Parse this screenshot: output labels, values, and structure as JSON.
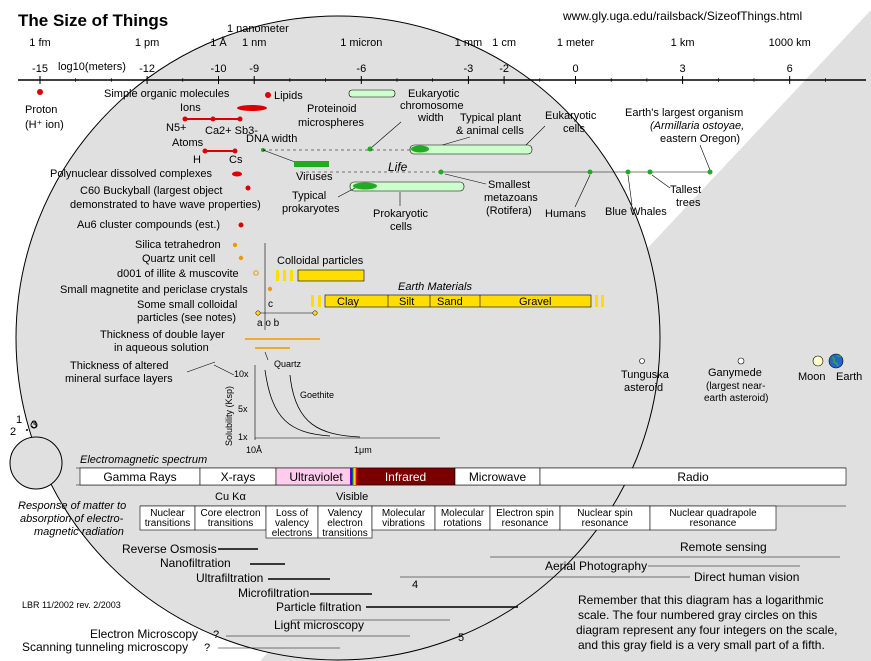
{
  "header": {
    "title": "The Size of Things",
    "url": "www.gly.uga.edu/railsback/SizeofThings.html"
  },
  "scale": {
    "axis_label": "log10(meters)",
    "ticks": [
      {
        "value": -15,
        "label": "-15",
        "unit": "1 fm"
      },
      {
        "value": -12,
        "label": "-12",
        "unit": "1 pm"
      },
      {
        "value": -10,
        "label": "-10",
        "unit": "1 Å"
      },
      {
        "value": -9,
        "label": "-9",
        "unit": "1 nm"
      },
      {
        "value": -6,
        "label": "-6",
        "unit": "1 micron"
      },
      {
        "value": -3,
        "label": "-3",
        "unit": "1 mm"
      },
      {
        "value": -2,
        "label": "-2",
        "unit": "1 cm"
      },
      {
        "value": 0,
        "label": "0",
        "unit": "1 meter"
      },
      {
        "value": 3,
        "label": "3",
        "unit": "1 km"
      },
      {
        "value": 6,
        "label": "6",
        "unit": "1000 km"
      }
    ],
    "nanometer_label": "1 nanometer"
  },
  "labels": {
    "proton": "Proton",
    "proton_sub": "(H⁺ ion)",
    "simple_organic": "Simple organic molecules",
    "ions": "Ions",
    "n5": "N5+",
    "ca_sb": "Ca2+ Sb3-",
    "atoms": "Atoms",
    "h": "H",
    "cs": "Cs",
    "lipids": "Lipids",
    "proteinoid": "Proteinoid",
    "microspheres": "microspheres",
    "euk_chrom1": "Eukaryotic",
    "euk_chrom2": "chromosome",
    "euk_chrom3": "width",
    "plant1": "Typical plant",
    "plant2": "& animal cells",
    "euk_cells1": "Eukaryotic",
    "euk_cells2": "cells",
    "largest1": "Earth's largest organism",
    "largest2": "(Armillaria ostoyae,",
    "largest3": "eastern Oregon)",
    "dna": "DNA width",
    "life": "Life",
    "viruses": "Viruses",
    "polynuclear": "Polynuclear dissolved complexes",
    "c60_1": "C60 Buckyball (largest object",
    "c60_2": "demonstrated to have wave properties)",
    "au6": "Au6 cluster compounds (est.)",
    "typ_prok1": "Typical",
    "typ_prok2": "prokaryotes",
    "prok1": "Prokaryotic",
    "prok2": "cells",
    "smallest1": "Smallest",
    "smallest2": "metazoans",
    "smallest3": "(Rotifera)",
    "humans": "Humans",
    "whales": "Blue Whales",
    "trees1": "Tallest",
    "trees2": "trees",
    "silica": "Silica tetrahedron",
    "quartz": "Quartz unit cell",
    "d001_1": "d001 of illite & muscovite",
    "colloidal": "Colloidal particles",
    "small_mag": "Small magnetite and periclase crystals",
    "earth_mat": "Earth Materials",
    "clay": "Clay",
    "silt": "Silt",
    "sand": "Sand",
    "gravel": "Gravel",
    "some_coll1": "Some small colloidal",
    "some_coll2": "particles (see notes)",
    "c": "c",
    "a_b": "a   o   b",
    "double1": "Thickness of double layer",
    "double2": "in aqueous solution",
    "altered1": "Thickness of altered",
    "altered2": "mineral surface layers",
    "quartz_small": "Quartz",
    "goethite": "Goethite",
    "ten_x": "10x",
    "five_x": "5x",
    "one_x": "1x",
    "solubility": "Solubility (Ksp)",
    "ten_a": "10Å",
    "one_um": "1μm",
    "tunguska1": "Tunguska",
    "tunguska2": "asteroid",
    "ganymede1": "Ganymede",
    "ganymede2": "(largest near-",
    "ganymede3": "earth asteroid)",
    "moon": "Moon",
    "earth": "Earth",
    "circ1": "1",
    "circ2": "2",
    "circ3": "3",
    "circ4": "4",
    "circ5": "5"
  },
  "em_spectrum": {
    "title": "Electromagnetic spectrum",
    "bands": [
      {
        "label": "Gamma Rays",
        "color": "#ffffff"
      },
      {
        "label": "X-rays",
        "color": "#ffffff"
      },
      {
        "label": "Ultraviolet",
        "color": "#ffccee"
      },
      {
        "label": "Infrared",
        "color": "#7a0000"
      },
      {
        "label": "Microwave",
        "color": "#ffffff"
      },
      {
        "label": "Radio",
        "color": "#ffffff"
      }
    ],
    "cu_label": "Cu Kα",
    "visible_label": "Visible"
  },
  "response": {
    "title1": "Response of matter to",
    "title2": "absorption of electro-",
    "title3": "magnetic radiation",
    "cells": [
      {
        "l1": "Nuclear",
        "l2": "transitions",
        "l3": ""
      },
      {
        "l1": "Core electron",
        "l2": "transitions",
        "l3": ""
      },
      {
        "l1": "Loss of",
        "l2": "valency",
        "l3": "electrons"
      },
      {
        "l1": "Valency",
        "l2": "electron",
        "l3": "transitions"
      },
      {
        "l1": "Molecular",
        "l2": "vibrations",
        "l3": ""
      },
      {
        "l1": "Molecular",
        "l2": "rotations",
        "l3": ""
      },
      {
        "l1": "Electron spin",
        "l2": "resonance",
        "l3": ""
      },
      {
        "l1": "Nuclear spin",
        "l2": "resonance",
        "l3": ""
      },
      {
        "l1": "Nuclear quadrapole",
        "l2": "resonance",
        "l3": ""
      }
    ]
  },
  "techniques": [
    {
      "label": "Remote sensing"
    },
    {
      "label": "Reverse Osmosis"
    },
    {
      "label": "Aerial Photography"
    },
    {
      "label": "Nanofiltration"
    },
    {
      "label": "Direct human vision"
    },
    {
      "label": "Ultrafiltration"
    },
    {
      "label": "Microfiltration"
    },
    {
      "label": "Particle filtration"
    },
    {
      "label": "Light microscopy"
    },
    {
      "label": "Electron Microscopy"
    },
    {
      "label": "Scanning tunneling microscopy"
    },
    {
      "label": "?"
    },
    {
      "label": "?"
    }
  ],
  "footer": {
    "credit": "LBR 11/2002 rev. 2/2003",
    "note1": "Remember that this diagram has a logarithmic",
    "note2": "scale.  The four numbered gray circles on this",
    "note3": "diagram represent any four integers on the scale,",
    "note4": "and this gray field is a very small part of a fifth."
  },
  "colors": {
    "red": "#dd0000",
    "green": "#22aa22",
    "light_green": "#ccffcc",
    "yellow": "#ffdd00",
    "orange": "#ee9900",
    "gray": "#e0e0e0"
  }
}
